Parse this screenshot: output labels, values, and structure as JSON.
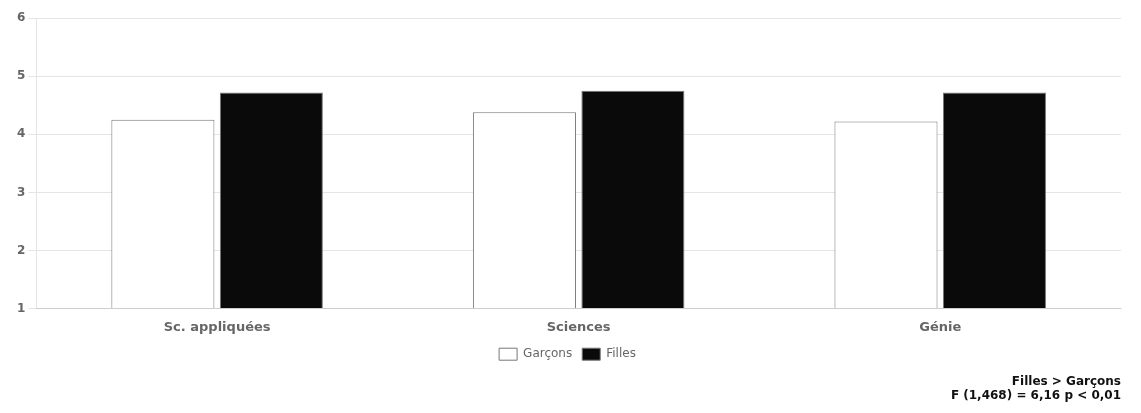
{
  "chart_data": {
    "type": "bar",
    "categories": [
      "Sc. appliquées",
      "Sciences",
      "Génie"
    ],
    "series": [
      {
        "name": "Garçons",
        "color": "#ffffff",
        "values": [
          4.25,
          4.38,
          4.22
        ]
      },
      {
        "name": "Filles",
        "color": "#0a0a0a",
        "values": [
          4.72,
          4.75,
          4.72
        ]
      }
    ],
    "ylim": [
      1,
      6
    ],
    "yticks": [
      1,
      2,
      3,
      4,
      5,
      6
    ],
    "grid": true,
    "legend": "bottom",
    "annotations": [
      "Filles > Garçons",
      "F (1,468) = 6,16 p < 0,01"
    ]
  }
}
